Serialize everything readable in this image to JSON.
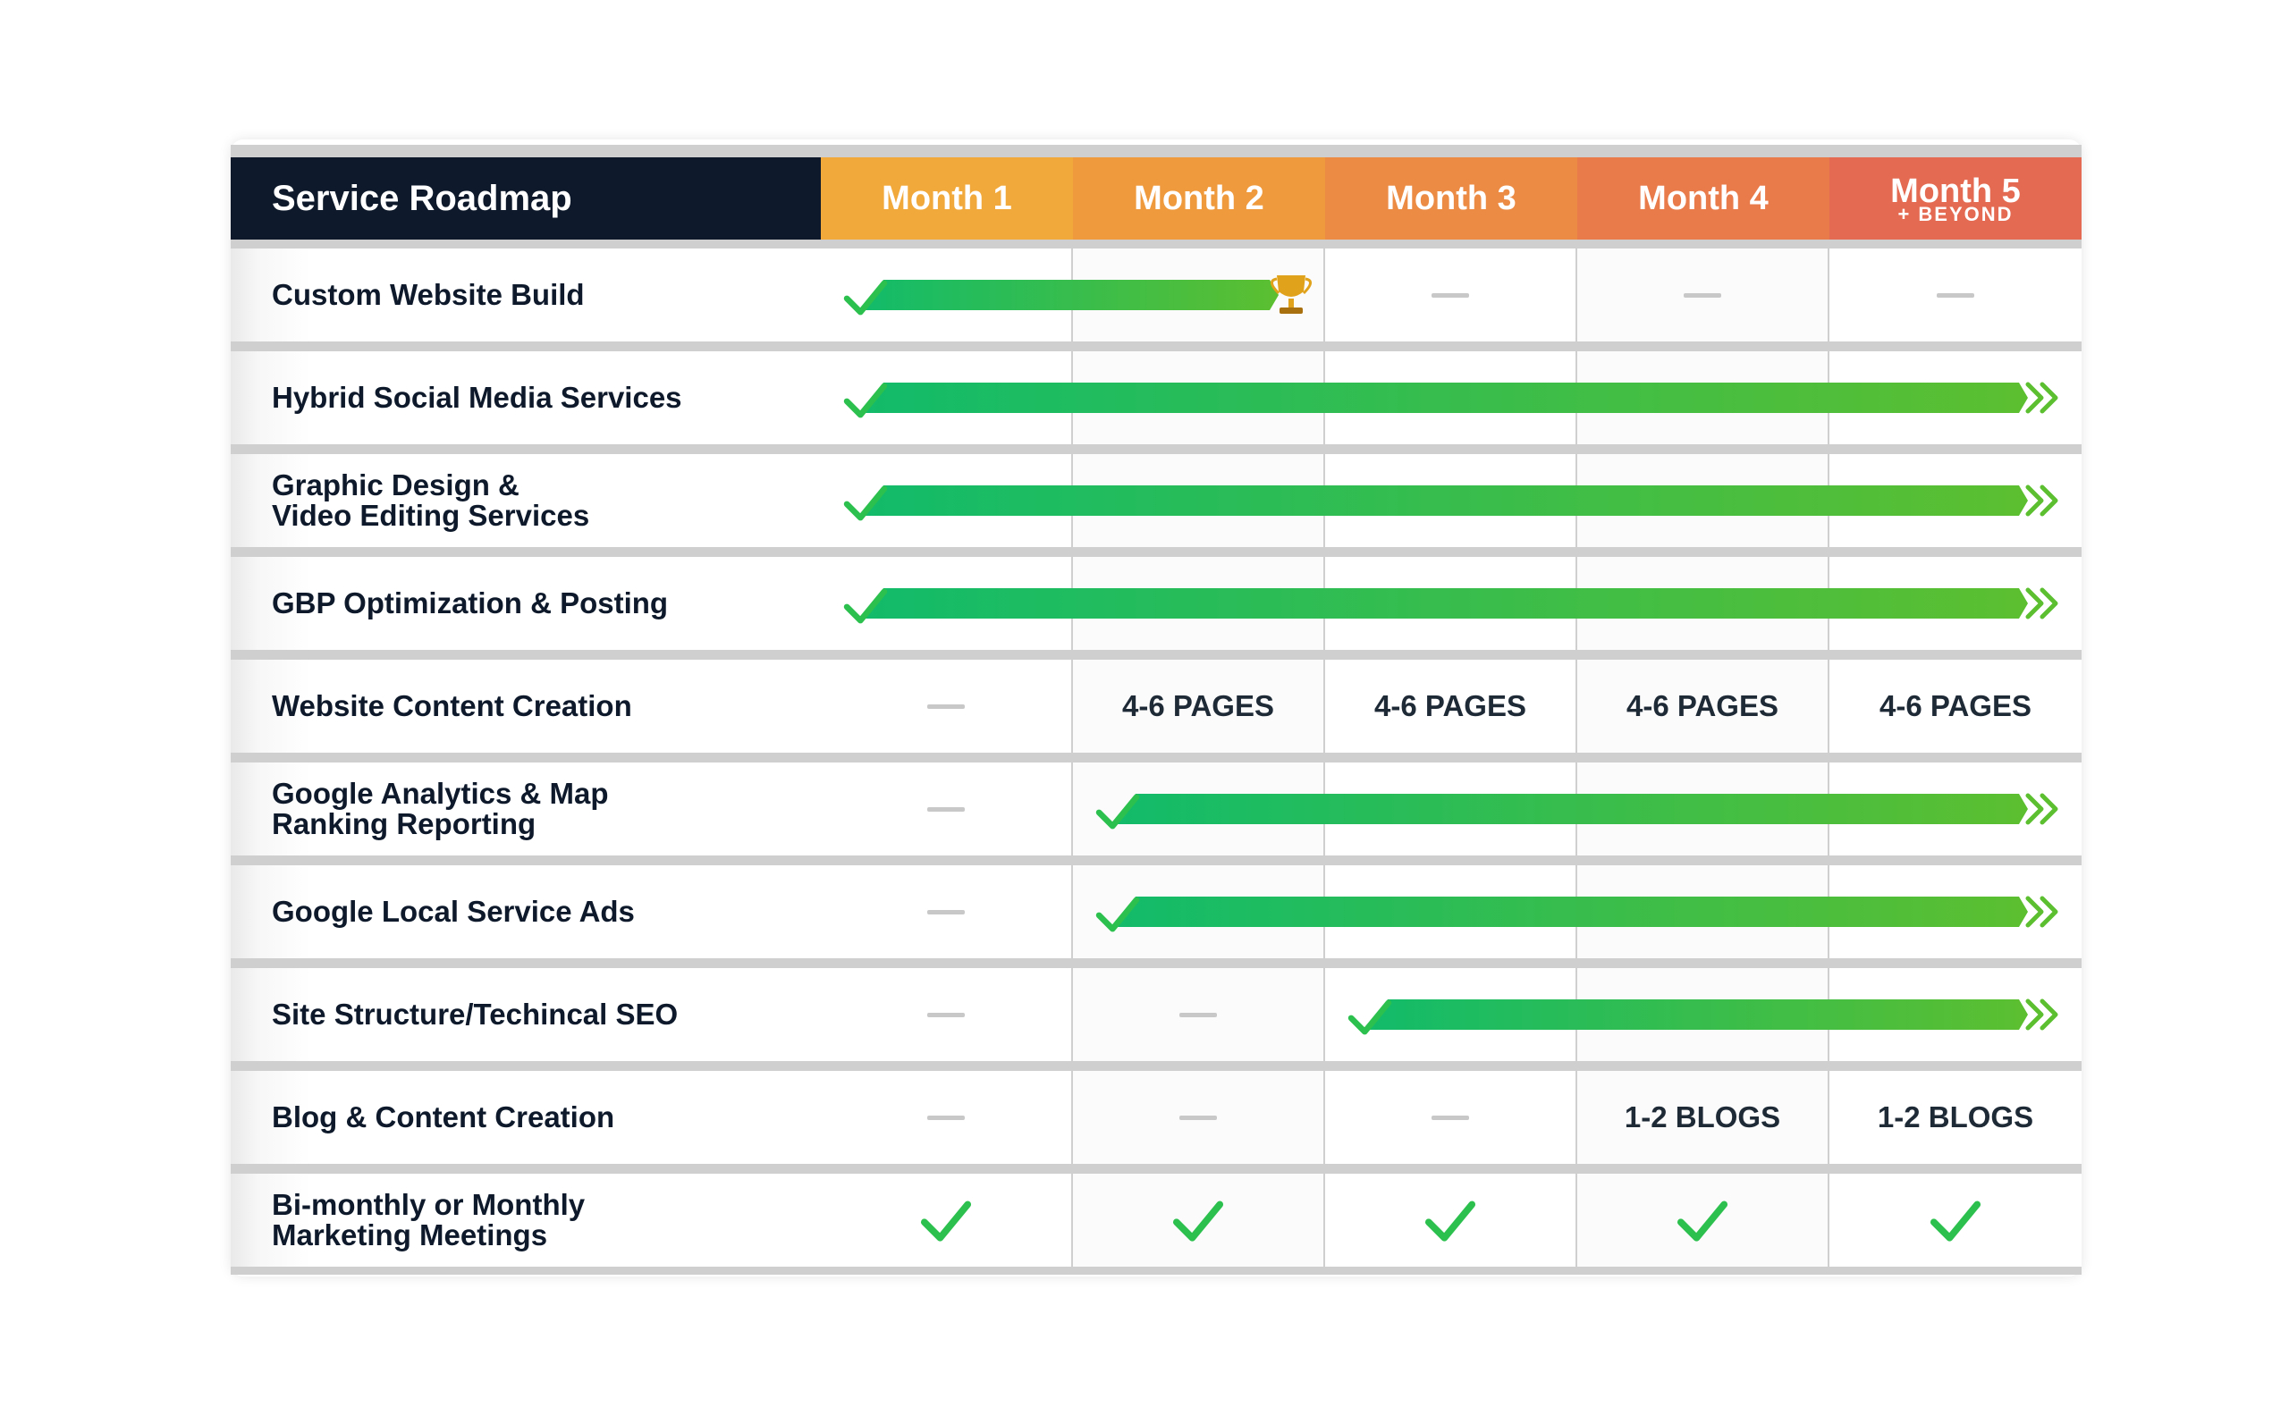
{
  "header": {
    "title": "Service Roadmap",
    "months": [
      {
        "label": "Month 1",
        "sub": "",
        "color": "#f2a93b"
      },
      {
        "label": "Month 2",
        "sub": "",
        "color": "#ef9a3d"
      },
      {
        "label": "Month 3",
        "sub": "",
        "color": "#ec8b44"
      },
      {
        "label": "Month 4",
        "sub": "",
        "color": "#e97a4a"
      },
      {
        "label": "Month 5",
        "sub": "+ BEYOND",
        "color": "#e46a51"
      }
    ]
  },
  "rows": [
    {
      "label": "Custom Website Build",
      "cells": [
        "bar",
        "bar",
        "dash",
        "dash",
        "dash"
      ],
      "bar_start_month": 1,
      "bar_end_month": 2,
      "bar_end": "trophy-icon"
    },
    {
      "label": "Hybrid Social Media Services",
      "cells": [
        "bar",
        "bar",
        "bar",
        "bar",
        "bar"
      ],
      "bar_start_month": 1,
      "bar_end_month": 5,
      "bar_end": "double-chevron-icon"
    },
    {
      "label": "Graphic Design &\nVideo Editing Services",
      "cells": [
        "bar",
        "bar",
        "bar",
        "bar",
        "bar"
      ],
      "bar_start_month": 1,
      "bar_end_month": 5,
      "bar_end": "double-chevron-icon"
    },
    {
      "label": "GBP Optimization & Posting",
      "cells": [
        "bar",
        "bar",
        "bar",
        "bar",
        "bar"
      ],
      "bar_start_month": 1,
      "bar_end_month": 5,
      "bar_end": "double-chevron-icon"
    },
    {
      "label": "Website Content Creation",
      "cells": [
        "dash",
        "4-6 PAGES",
        "4-6 PAGES",
        "4-6 PAGES",
        "4-6 PAGES"
      ]
    },
    {
      "label": "Google Analytics & Map\nRanking Reporting",
      "cells": [
        "dash",
        "bar",
        "bar",
        "bar",
        "bar"
      ],
      "bar_start_month": 2,
      "bar_end_month": 5,
      "bar_end": "double-chevron-icon"
    },
    {
      "label": "Google Local Service Ads",
      "cells": [
        "dash",
        "bar",
        "bar",
        "bar",
        "bar"
      ],
      "bar_start_month": 2,
      "bar_end_month": 5,
      "bar_end": "double-chevron-icon"
    },
    {
      "label": "Site Structure/Techincal SEO",
      "cells": [
        "dash",
        "dash",
        "bar",
        "bar",
        "bar"
      ],
      "bar_start_month": 3,
      "bar_end_month": 5,
      "bar_end": "double-chevron-icon"
    },
    {
      "label": "Blog & Content Creation",
      "cells": [
        "dash",
        "dash",
        "dash",
        "1-2 BLOGS",
        "1-2 BLOGS"
      ]
    },
    {
      "label": "Bi-monthly or Monthly\nMarketing Meetings",
      "cells": [
        "check",
        "check",
        "check",
        "check",
        "check"
      ]
    }
  ],
  "colors": {
    "bar_start": "#12bb6a",
    "bar_end": "#5cbf30",
    "check": "#2cc04e",
    "dash": "#c8c8c8",
    "trophy": "#e0a21a"
  }
}
